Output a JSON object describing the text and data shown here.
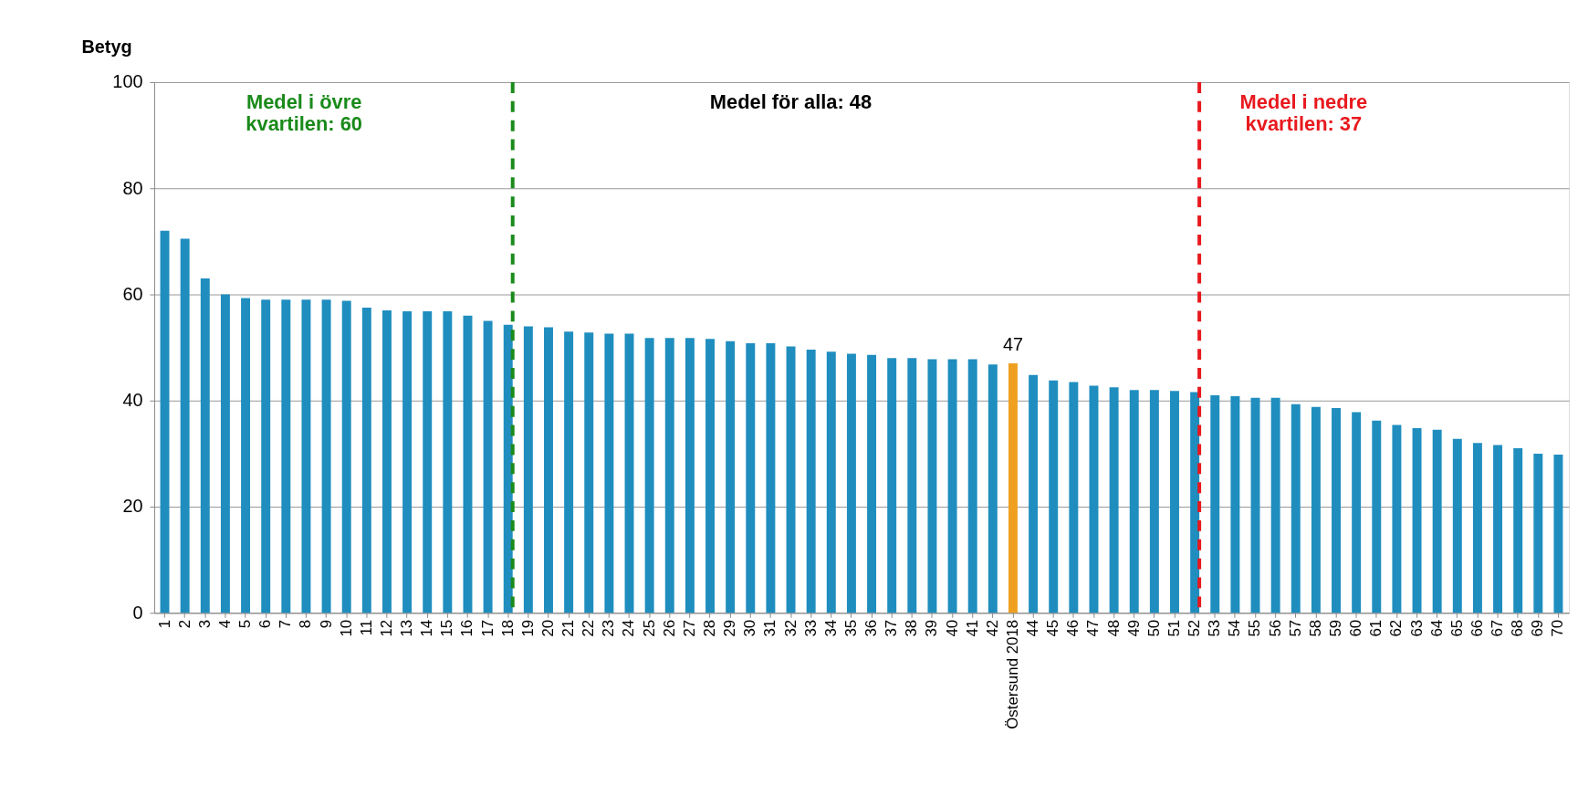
{
  "chart_data": {
    "type": "bar",
    "ylabel": "Betyg",
    "categories": [
      "1",
      "2",
      "3",
      "4",
      "5",
      "6",
      "7",
      "8",
      "9",
      "10",
      "11",
      "12",
      "13",
      "14",
      "15",
      "16",
      "17",
      "18",
      "19",
      "20",
      "21",
      "22",
      "23",
      "24",
      "25",
      "26",
      "27",
      "28",
      "29",
      "30",
      "31",
      "32",
      "33",
      "34",
      "35",
      "36",
      "37",
      "38",
      "39",
      "40",
      "41",
      "42",
      "Östersund 2018",
      "44",
      "45",
      "46",
      "47",
      "48",
      "49",
      "50",
      "51",
      "52",
      "53",
      "54",
      "55",
      "56",
      "57",
      "58",
      "59",
      "60",
      "61",
      "62",
      "63",
      "64",
      "65",
      "66",
      "67",
      "68",
      "69",
      "70"
    ],
    "values": [
      72,
      70.5,
      63,
      60,
      59.3,
      59,
      59,
      59,
      59,
      58.8,
      57.5,
      57,
      56.8,
      56.8,
      56.8,
      56,
      55,
      54.3,
      54,
      53.8,
      53,
      52.8,
      52.6,
      52.6,
      51.8,
      51.8,
      51.8,
      51.6,
      51.2,
      50.8,
      50.8,
      50.2,
      49.6,
      49.2,
      48.8,
      48.6,
      48,
      48,
      47.8,
      47.8,
      47.8,
      46.8,
      47,
      44.8,
      43.8,
      43.5,
      42.8,
      42.5,
      42,
      42,
      41.8,
      41.6,
      41,
      40.8,
      40.5,
      40.5,
      39.3,
      38.8,
      38.6,
      37.8,
      36.2,
      35.4,
      34.8,
      34.5,
      32.8,
      32,
      31.6,
      31,
      30,
      29.8
    ],
    "colors": [
      "#1f8ebf",
      "#1f8ebf",
      "#1f8ebf",
      "#1f8ebf",
      "#1f8ebf",
      "#1f8ebf",
      "#1f8ebf",
      "#1f8ebf",
      "#1f8ebf",
      "#1f8ebf",
      "#1f8ebf",
      "#1f8ebf",
      "#1f8ebf",
      "#1f8ebf",
      "#1f8ebf",
      "#1f8ebf",
      "#1f8ebf",
      "#1f8ebf",
      "#1f8ebf",
      "#1f8ebf",
      "#1f8ebf",
      "#1f8ebf",
      "#1f8ebf",
      "#1f8ebf",
      "#1f8ebf",
      "#1f8ebf",
      "#1f8ebf",
      "#1f8ebf",
      "#1f8ebf",
      "#1f8ebf",
      "#1f8ebf",
      "#1f8ebf",
      "#1f8ebf",
      "#1f8ebf",
      "#1f8ebf",
      "#1f8ebf",
      "#1f8ebf",
      "#1f8ebf",
      "#1f8ebf",
      "#1f8ebf",
      "#1f8ebf",
      "#1f8ebf",
      "#f0a020",
      "#1f8ebf",
      "#1f8ebf",
      "#1f8ebf",
      "#1f8ebf",
      "#1f8ebf",
      "#1f8ebf",
      "#1f8ebf",
      "#1f8ebf",
      "#1f8ebf",
      "#1f8ebf",
      "#1f8ebf",
      "#1f8ebf",
      "#1f8ebf",
      "#1f8ebf",
      "#1f8ebf",
      "#1f8ebf",
      "#1f8ebf",
      "#1f8ebf",
      "#1f8ebf",
      "#1f8ebf",
      "#1f8ebf",
      "#1f8ebf",
      "#1f8ebf",
      "#1f8ebf",
      "#1f8ebf",
      "#1f8ebf",
      "#1f8ebf"
    ],
    "value_labels": [
      null,
      null,
      null,
      null,
      null,
      null,
      null,
      null,
      null,
      null,
      null,
      null,
      null,
      null,
      null,
      null,
      null,
      null,
      null,
      null,
      null,
      null,
      null,
      null,
      null,
      null,
      null,
      null,
      null,
      null,
      null,
      null,
      null,
      null,
      null,
      null,
      null,
      null,
      null,
      null,
      null,
      null,
      "47",
      null,
      null,
      null,
      null,
      null,
      null,
      null,
      null,
      null,
      null,
      null,
      null,
      null,
      null,
      null,
      null,
      null,
      null,
      null,
      null,
      null,
      null,
      null,
      null,
      null,
      null,
      null
    ],
    "ylim": [
      0,
      100
    ],
    "yticks": [
      0,
      20,
      40,
      60,
      80,
      100
    ],
    "grid": "y",
    "ref_lines": [
      {
        "axis": "x",
        "value": "18",
        "label": "Medel i övre\nkvartilen: 60",
        "color": "#1a8a1a",
        "line_style": "dashed"
      },
      {
        "axis": "x",
        "value": "52",
        "label": "Medel i nedre\nkvartilen: 37",
        "color": "#e8191e",
        "line_style": "dashed"
      }
    ],
    "annotations": [
      "Medel för alla: 48"
    ]
  }
}
